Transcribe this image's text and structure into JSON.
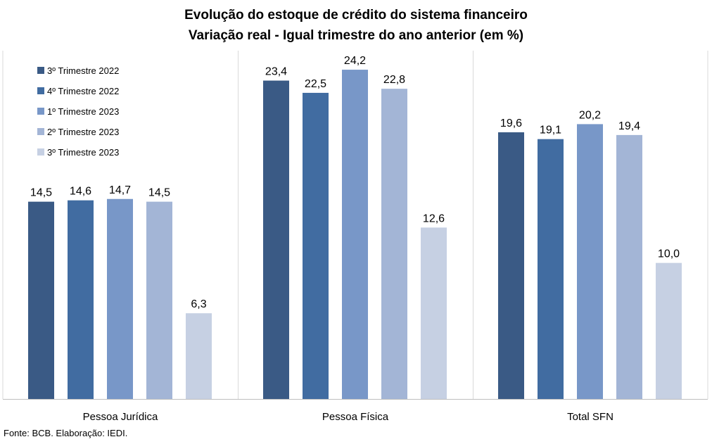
{
  "chart_data": {
    "type": "bar",
    "title": "Evolução do estoque de crédito do sistema financeiro",
    "subtitle": "Variação real - Igual trimestre do ano anterior (em %)",
    "categories": [
      "Pessoa Jurídica",
      "Pessoa Física",
      "Total SFN"
    ],
    "series": [
      {
        "name": "3º Trimestre 2022",
        "values": [
          14.5,
          23.4,
          19.6
        ],
        "labels": [
          "14,5",
          "23,4",
          "19,6"
        ],
        "color": "#3a5a85"
      },
      {
        "name": "4º Trimestre 2022",
        "values": [
          14.6,
          22.5,
          19.1
        ],
        "labels": [
          "14,6",
          "22,5",
          "19,1"
        ],
        "color": "#416ca1"
      },
      {
        "name": "1º Trimestre 2023",
        "values": [
          14.7,
          24.2,
          20.2
        ],
        "labels": [
          "14,7",
          "24,2",
          "20,2"
        ],
        "color": "#7897c8"
      },
      {
        "name": "2º Trimestre 2023",
        "values": [
          14.5,
          22.8,
          19.4
        ],
        "labels": [
          "14,5",
          "22,8",
          "19,4"
        ],
        "color": "#a3b5d6"
      },
      {
        "name": "3º Trimestre 2023",
        "values": [
          6.3,
          12.6,
          10.0
        ],
        "labels": [
          "6,3",
          "12,6",
          "10,0"
        ],
        "color": "#c6d0e3"
      }
    ],
    "ylim": [
      0,
      25.6
    ],
    "grid": false,
    "legend": "top-left, inside first panel"
  },
  "source": "Fonte: BCB. Elaboração: IEDI."
}
